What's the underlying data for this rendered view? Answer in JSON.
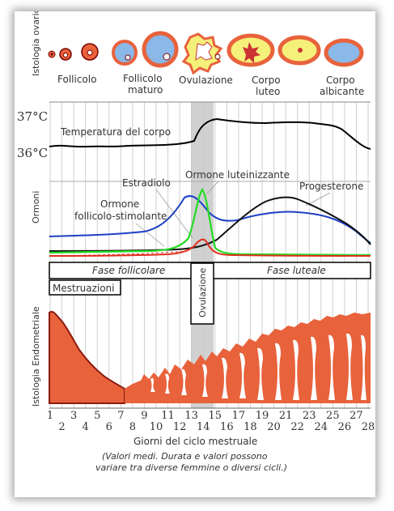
{
  "rows": {
    "ovarian": "Istologia ovarica",
    "hormones": "Ormoni",
    "endometrium": "Istologia Endometriale"
  },
  "stages": [
    "Follicolo",
    "Follicolo",
    "maturo",
    "Ovulazione",
    "Corpo",
    "luteo",
    "Corpo",
    "albicante"
  ],
  "temperature": {
    "label": "Temperatura del corpo",
    "ticks": [
      "37°C",
      "36°C"
    ]
  },
  "hormones": {
    "estradiol": "Estradiolo",
    "lh": "Ormone luteinizzante",
    "progesterone": "Progesterone",
    "fsh_line1": "Ormone",
    "fsh_line2": "follicolo-stimolante"
  },
  "phases": {
    "follicular": "Fase follicolare",
    "luteal": "Fase luteale",
    "menstruation": "Mestruazioni",
    "ovulation": "Ovulazione"
  },
  "axis": {
    "days": [
      "1",
      "2",
      "3",
      "4",
      "5",
      "6",
      "7",
      "8",
      "9",
      "10",
      "11",
      "12",
      "13",
      "14",
      "15",
      "16",
      "17",
      "18",
      "19",
      "20",
      "21",
      "22",
      "23",
      "24",
      "25",
      "26",
      "27",
      "28"
    ],
    "title": "Giorni del ciclo mestruale"
  },
  "note": {
    "line1": "(Valori medi. Durata e valori possono",
    "line2": "variare tra diverse femmine o diversi cicli.)"
  },
  "colors": {
    "fsh": "#1c3fc4",
    "lh": "#22dd22",
    "estradiol": "#e03020",
    "progesterone": "#111111",
    "tissue": "#e8623c",
    "ovulation_band": "#c8c8c8"
  }
}
